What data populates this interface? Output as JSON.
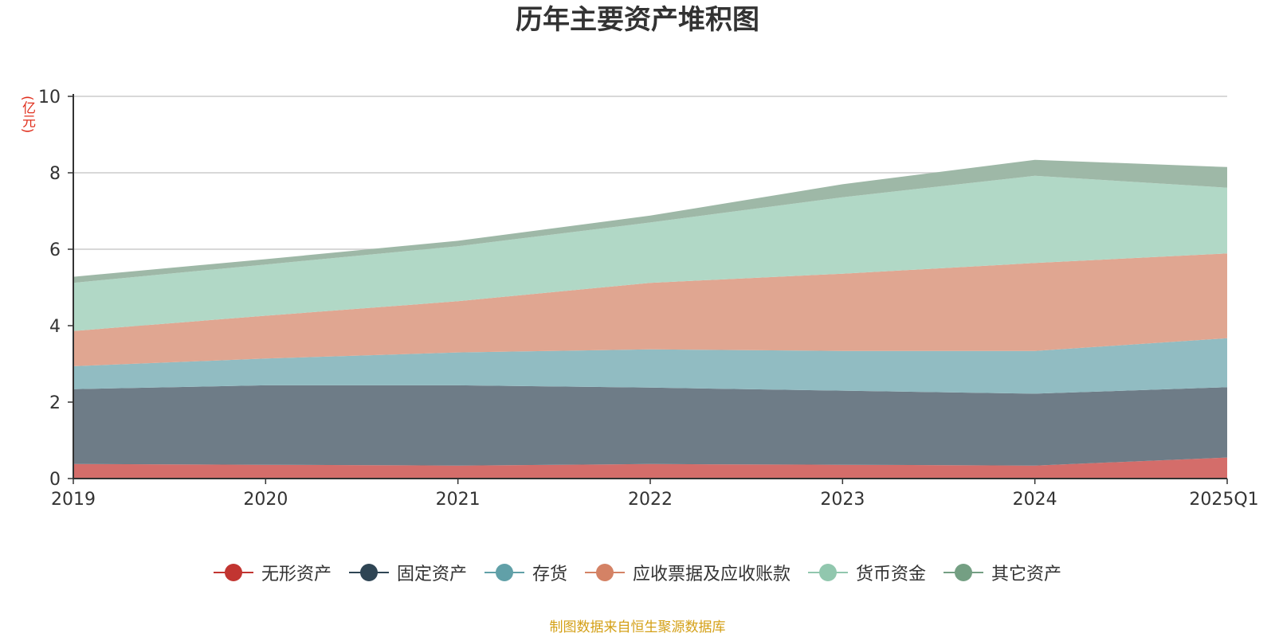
{
  "chart_data": {
    "type": "area",
    "stacked": true,
    "title": "历年主要资产堆积图",
    "y_unit_label": "(亿元)",
    "categories": [
      "2019",
      "2020",
      "2021",
      "2022",
      "2023",
      "2024",
      "2025Q1"
    ],
    "ylim": [
      0,
      10
    ],
    "y_ticks": [
      "0",
      "2",
      "4",
      "6",
      "8",
      "10"
    ],
    "grid": true,
    "legend_position": "bottom",
    "series": [
      {
        "name": "无形资产",
        "color": "#c23531",
        "fill": "#d46d6a",
        "values": [
          0.38,
          0.36,
          0.34,
          0.38,
          0.36,
          0.34,
          0.55
        ]
      },
      {
        "name": "固定资产",
        "color": "#2f4554",
        "fill": "#6e7c87",
        "values": [
          1.96,
          2.08,
          2.1,
          2.0,
          1.94,
          1.88,
          1.84
        ]
      },
      {
        "name": "存货",
        "color": "#61a0a8",
        "fill": "#91bcc2",
        "values": [
          0.6,
          0.7,
          0.86,
          1.0,
          1.04,
          1.12,
          1.28
        ]
      },
      {
        "name": "应收票据及应收账款",
        "color": "#d48265",
        "fill": "#e0a691",
        "values": [
          0.92,
          1.12,
          1.34,
          1.74,
          2.02,
          2.3,
          2.22
        ]
      },
      {
        "name": "货币资金",
        "color": "#91c7ae",
        "fill": "#b1d8c6",
        "values": [
          1.26,
          1.34,
          1.44,
          1.58,
          2.0,
          2.28,
          1.72
        ]
      },
      {
        "name": "其它资产",
        "color": "#749f83",
        "fill": "#9eb8a7",
        "values": [
          0.16,
          0.14,
          0.14,
          0.18,
          0.34,
          0.42,
          0.54
        ]
      }
    ]
  },
  "source_note": "制图数据来自恒生聚源数据库"
}
